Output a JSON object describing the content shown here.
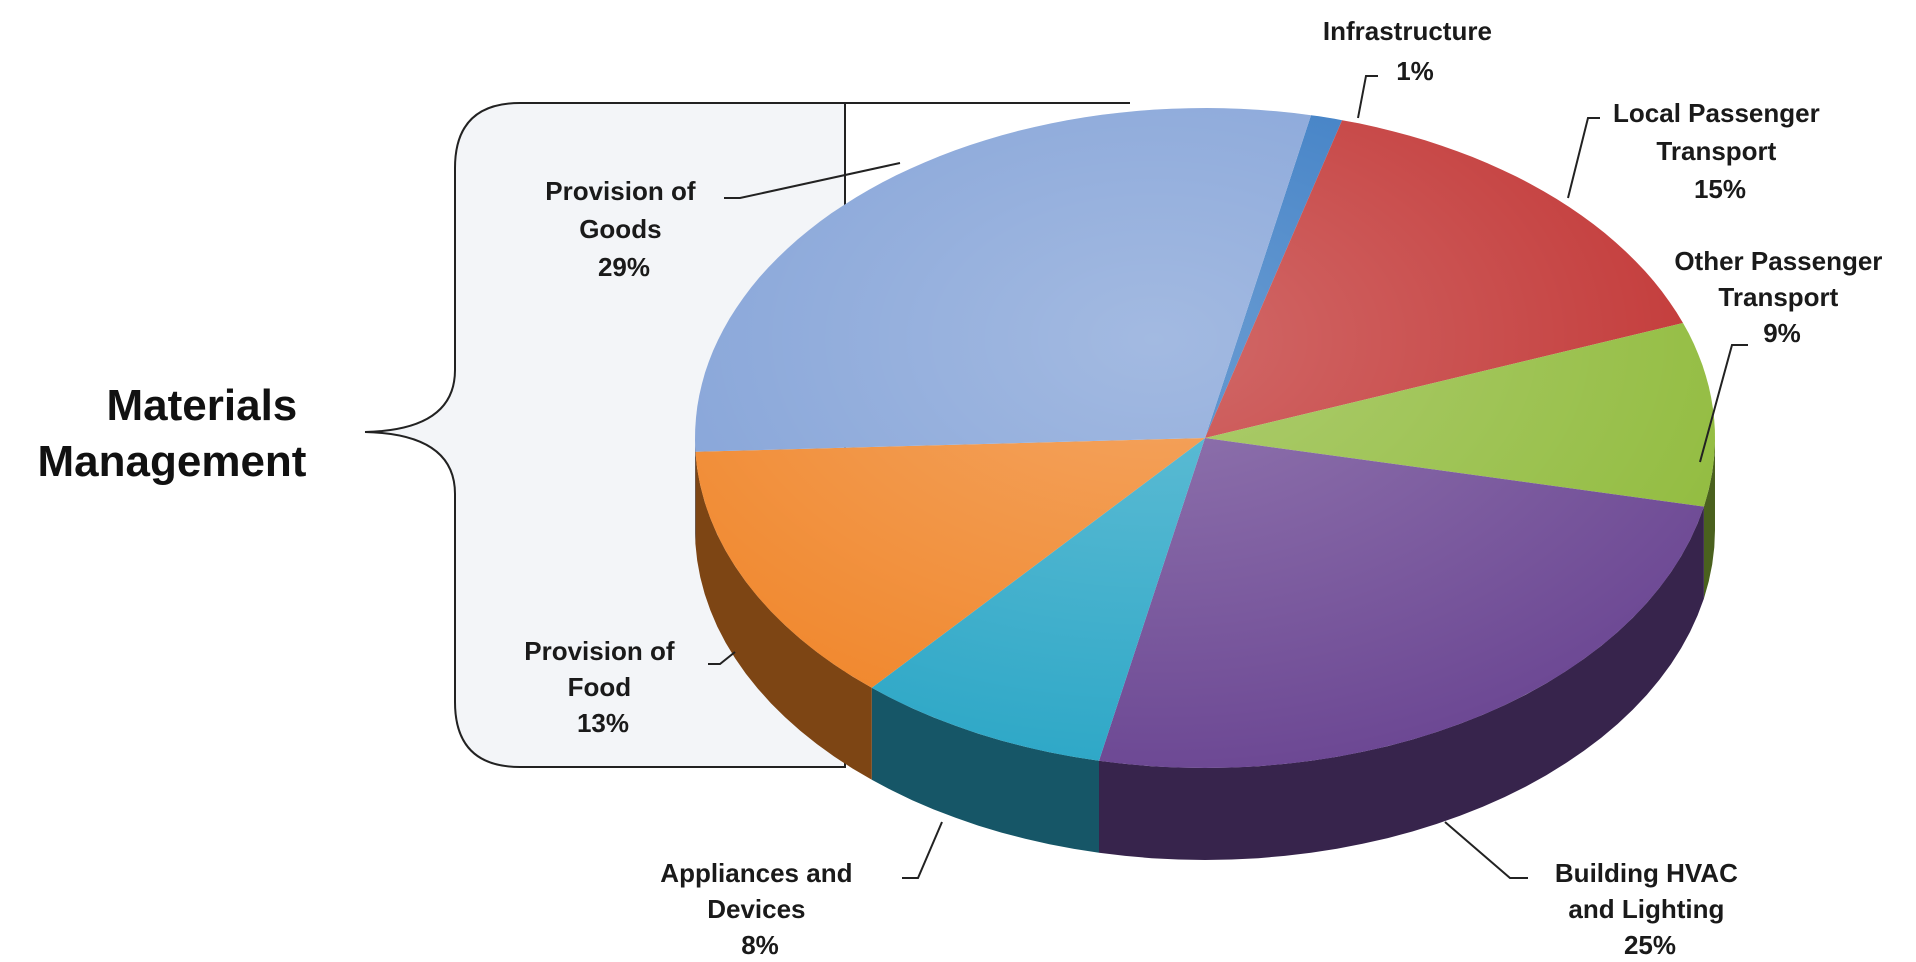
{
  "chart_data": {
    "type": "pie",
    "title": "",
    "slices": [
      {
        "label_lines": [
          "Infrastructure",
          "1%"
        ],
        "value": 1,
        "color": "#2e74c0"
      },
      {
        "label_lines": [
          "Local Passenger",
          "Transport",
          "15%"
        ],
        "value": 15,
        "color": "#c0302f"
      },
      {
        "label_lines": [
          "Other Passenger",
          "Transport",
          "9%"
        ],
        "value": 9,
        "color": "#8fba3a"
      },
      {
        "label_lines": [
          "Building HVAC",
          "and Lighting",
          "25%"
        ],
        "value": 25,
        "color": "#6a4592"
      },
      {
        "label_lines": [
          "Appliances and",
          "Devices",
          "8%"
        ],
        "value": 8,
        "color": "#2aa6c6"
      },
      {
        "label_lines": [
          "Provision of",
          "Food",
          "13%"
        ],
        "value": 13,
        "color": "#f08427"
      },
      {
        "label_lines": [
          "Provision of",
          "Goods",
          "29%"
        ],
        "value": 29,
        "color": "#7f9fd6"
      }
    ],
    "grouping": {
      "label_lines": [
        "Materials",
        "Management"
      ],
      "members": [
        "Provision of Goods",
        "Provision of Food"
      ]
    }
  }
}
